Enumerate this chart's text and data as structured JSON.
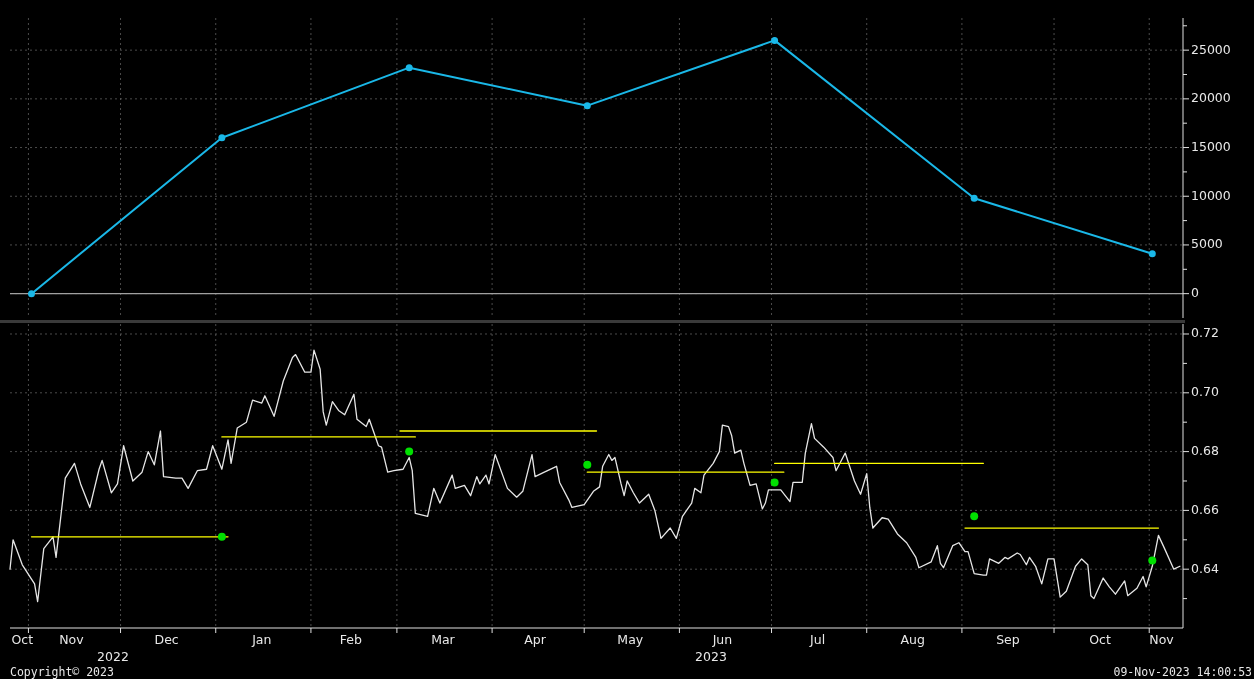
{
  "chart_data": [
    {
      "type": "line",
      "x": [
        "2022-11-02",
        "2023-01-03",
        "2023-03-05",
        "2023-05-02",
        "2023-07-02",
        "2023-09-05",
        "2023-11-02"
      ],
      "series": [
        {
          "color": "#1ab8e8",
          "values": [
            0,
            16000,
            23200,
            19300,
            26000,
            9800,
            4100
          ]
        }
      ],
      "marker": "circle",
      "grid": true,
      "tick_labels": "y",
      "xlim": [
        "2022-10-26",
        "2023-11-12"
      ],
      "xticks": [
        {
          "value": "2022-11-01",
          "label": null
        },
        {
          "value": "2022-12-01",
          "label": null
        },
        {
          "value": "2023-01-01",
          "label": null
        },
        {
          "value": "2023-02-01",
          "label": null
        },
        {
          "value": "2023-03-01",
          "label": null
        },
        {
          "value": "2023-04-01",
          "label": null
        },
        {
          "value": "2023-05-01",
          "label": null
        },
        {
          "value": "2023-06-01",
          "label": null
        },
        {
          "value": "2023-07-01",
          "label": null
        },
        {
          "value": "2023-08-01",
          "label": null
        },
        {
          "value": "2023-09-01",
          "label": null
        },
        {
          "value": "2023-10-01",
          "label": null
        },
        {
          "value": "2023-11-01",
          "label": null
        }
      ],
      "ylim": [
        -2500,
        28300
      ],
      "yticks": [
        0,
        5000,
        10000,
        15000,
        20000,
        25000,
        {
          "value": 2500,
          "label": null
        },
        {
          "value": 7500,
          "label": null
        },
        {
          "value": 12500,
          "label": null
        },
        {
          "value": 17500,
          "label": null
        },
        {
          "value": 22500,
          "label": null
        },
        {
          "value": 27500,
          "label": null
        }
      ],
      "ref_lines": [
        {
          "axis": "y",
          "value": 0,
          "color": "#a0a0a0"
        }
      ]
    },
    {
      "type": "line",
      "series": [
        {
          "color": "#e6e6e6",
          "x": [
            "2022-10-26",
            "2022-10-27",
            "2022-10-30",
            "2022-11-03",
            "2022-11-04",
            "2022-11-06",
            "2022-11-09",
            "2022-11-10",
            "2022-11-12",
            "2022-11-13",
            "2022-11-16",
            "2022-11-18",
            "2022-11-21",
            "2022-11-24",
            "2022-11-25",
            "2022-11-28",
            "2022-11-30",
            "2022-12-02",
            "2022-12-05",
            "2022-12-08",
            "2022-12-10",
            "2022-12-12",
            "2022-12-14",
            "2022-12-15",
            "2022-12-19",
            "2022-12-21",
            "2022-12-23",
            "2022-12-26",
            "2022-12-29",
            "2022-12-31",
            "2023-01-03",
            "2023-01-05",
            "2023-01-06",
            "2023-01-08",
            "2023-01-11",
            "2023-01-13",
            "2023-01-16",
            "2023-01-17",
            "2023-01-20",
            "2023-01-23",
            "2023-01-26",
            "2023-01-27",
            "2023-01-30",
            "2023-02-01",
            "2023-02-02",
            "2023-02-04",
            "2023-02-05",
            "2023-02-06",
            "2023-02-08",
            "2023-02-10",
            "2023-02-12",
            "2023-02-15",
            "2023-02-16",
            "2023-02-19",
            "2023-02-20",
            "2023-02-23",
            "2023-02-24",
            "2023-02-26",
            "2023-02-28",
            "2023-03-03",
            "2023-03-05",
            "2023-03-06",
            "2023-03-07",
            "2023-03-11",
            "2023-03-13",
            "2023-03-15",
            "2023-03-19",
            "2023-03-20",
            "2023-03-23",
            "2023-03-25",
            "2023-03-27",
            "2023-03-28",
            "2023-03-30",
            "2023-03-31",
            "2023-04-02",
            "2023-04-06",
            "2023-04-09",
            "2023-04-11",
            "2023-04-14",
            "2023-04-15",
            "2023-04-18",
            "2023-04-22",
            "2023-04-23",
            "2023-04-26",
            "2023-04-27",
            "2023-05-01",
            "2023-05-04",
            "2023-05-06",
            "2023-05-07",
            "2023-05-09",
            "2023-05-10",
            "2023-05-11",
            "2023-05-13",
            "2023-05-14",
            "2023-05-15",
            "2023-05-17",
            "2023-05-19",
            "2023-05-22",
            "2023-05-24",
            "2023-05-26",
            "2023-05-29",
            "2023-05-31",
            "2023-06-02",
            "2023-06-05",
            "2023-06-06",
            "2023-06-08",
            "2023-06-09",
            "2023-06-12",
            "2023-06-14",
            "2023-06-15",
            "2023-06-17",
            "2023-06-18",
            "2023-06-19",
            "2023-06-21",
            "2023-06-22",
            "2023-06-24",
            "2023-06-26",
            "2023-06-28",
            "2023-06-29",
            "2023-06-30",
            "2023-07-04",
            "2023-07-07",
            "2023-07-08",
            "2023-07-11",
            "2023-07-12",
            "2023-07-14",
            "2023-07-15",
            "2023-07-18",
            "2023-07-21",
            "2023-07-22",
            "2023-07-25",
            "2023-07-28",
            "2023-07-30",
            "2023-08-01",
            "2023-08-02",
            "2023-08-03",
            "2023-08-06",
            "2023-08-08",
            "2023-08-11",
            "2023-08-14",
            "2023-08-17",
            "2023-08-18",
            "2023-08-22",
            "2023-08-24",
            "2023-08-25",
            "2023-08-26",
            "2023-08-29",
            "2023-08-31",
            "2023-09-02",
            "2023-09-03",
            "2023-09-05",
            "2023-09-08",
            "2023-09-09",
            "2023-09-10",
            "2023-09-13",
            "2023-09-15",
            "2023-09-16",
            "2023-09-19",
            "2023-09-20",
            "2023-09-22",
            "2023-09-23",
            "2023-09-25",
            "2023-09-27",
            "2023-09-29",
            "2023-10-01",
            "2023-10-03",
            "2023-10-05",
            "2023-10-08",
            "2023-10-10",
            "2023-10-12",
            "2023-10-13",
            "2023-10-14",
            "2023-10-17",
            "2023-10-19",
            "2023-10-21",
            "2023-10-24",
            "2023-10-25",
            "2023-10-28",
            "2023-10-30",
            "2023-10-31",
            "2023-11-02",
            "2023-11-04",
            "2023-11-06",
            "2023-11-09",
            "2023-11-11"
          ],
          "values": [
            0.64,
            0.65,
            0.6415,
            0.635,
            0.629,
            0.647,
            0.651,
            0.644,
            0.662,
            0.671,
            0.676,
            0.669,
            0.661,
            0.674,
            0.677,
            0.666,
            0.669,
            0.682,
            0.67,
            0.673,
            0.68,
            0.6755,
            0.687,
            0.6715,
            0.671,
            0.671,
            0.6675,
            0.6735,
            0.674,
            0.682,
            0.674,
            0.684,
            0.676,
            0.688,
            0.69,
            0.6975,
            0.6965,
            0.699,
            0.692,
            0.704,
            0.712,
            0.713,
            0.707,
            0.707,
            0.7145,
            0.708,
            0.6935,
            0.689,
            0.697,
            0.694,
            0.6925,
            0.6995,
            0.691,
            0.6885,
            0.691,
            0.682,
            0.6815,
            0.673,
            0.6735,
            0.674,
            0.678,
            0.6735,
            0.659,
            0.658,
            0.6675,
            0.6625,
            0.672,
            0.6675,
            0.6685,
            0.665,
            0.6715,
            0.669,
            0.672,
            0.669,
            0.679,
            0.6675,
            0.6645,
            0.6665,
            0.679,
            0.6715,
            0.673,
            0.675,
            0.6695,
            0.6635,
            0.661,
            0.662,
            0.6665,
            0.668,
            0.675,
            0.679,
            0.677,
            0.678,
            0.669,
            0.665,
            0.67,
            0.666,
            0.6625,
            0.6655,
            0.66,
            0.6505,
            0.654,
            0.6505,
            0.658,
            0.6625,
            0.6675,
            0.666,
            0.672,
            0.676,
            0.68,
            0.689,
            0.6885,
            0.6855,
            0.6795,
            0.6805,
            0.676,
            0.6685,
            0.669,
            0.6605,
            0.6625,
            0.667,
            0.667,
            0.663,
            0.6695,
            0.6695,
            0.6795,
            0.6895,
            0.6845,
            0.6815,
            0.678,
            0.6735,
            0.6795,
            0.67,
            0.6655,
            0.6725,
            0.661,
            0.654,
            0.6575,
            0.657,
            0.652,
            0.649,
            0.644,
            0.6405,
            0.6425,
            0.648,
            0.642,
            0.6405,
            0.648,
            0.649,
            0.646,
            0.646,
            0.6385,
            0.638,
            0.638,
            0.6435,
            0.642,
            0.644,
            0.6435,
            0.6455,
            0.645,
            0.6415,
            0.644,
            0.641,
            0.635,
            0.6435,
            0.6435,
            0.6305,
            0.6325,
            0.641,
            0.6435,
            0.6415,
            0.631,
            0.63,
            0.637,
            0.634,
            0.6315,
            0.636,
            0.631,
            0.6335,
            0.6375,
            0.634,
            0.641,
            0.6515,
            0.647,
            0.64,
            0.641
          ]
        },
        {
          "color": "#ffff00",
          "x": [
            "2022-11-02",
            "2023-01-05"
          ],
          "values": [
            0.651,
            0.651
          ]
        },
        {
          "color": "#ffff00",
          "x": [
            "2023-01-03",
            "2023-03-07"
          ],
          "values": [
            0.685,
            0.685
          ]
        },
        {
          "color": "#ffff00",
          "x": [
            "2023-03-02",
            "2023-05-05"
          ],
          "values": [
            0.687,
            0.687
          ]
        },
        {
          "color": "#ffff00",
          "x": [
            "2023-05-02",
            "2023-07-05"
          ],
          "values": [
            0.673,
            0.673
          ]
        },
        {
          "color": "#ffff00",
          "x": [
            "2023-07-02",
            "2023-09-08"
          ],
          "values": [
            0.676,
            0.676
          ]
        },
        {
          "color": "#ffff00",
          "x": [
            "2023-09-02",
            "2023-11-04"
          ],
          "values": [
            0.654,
            0.654
          ]
        },
        {
          "type": "scatter",
          "color": "#00e000",
          "x": [
            "2023-01-03",
            "2023-03-05",
            "2023-05-02",
            "2023-07-02",
            "2023-09-05",
            "2023-11-02"
          ],
          "values": [
            0.651,
            0.68,
            0.6755,
            0.6695,
            0.658,
            0.643
          ]
        }
      ],
      "grid": true,
      "xlim": [
        "2022-10-26",
        "2023-11-12"
      ],
      "xticks": [
        {
          "value": "2022-10-30",
          "label": "Oct"
        },
        {
          "value": "2022-11-01",
          "label": null
        },
        {
          "value": "2022-11-15",
          "label": "Nov"
        },
        {
          "value": "2022-12-01",
          "label": null
        },
        {
          "value": "2022-12-16",
          "label": "Dec"
        },
        {
          "value": "2023-01-01",
          "label": null
        },
        {
          "value": "2023-01-16",
          "label": "Jan"
        },
        {
          "value": "2023-02-01",
          "label": null
        },
        {
          "value": "2023-02-14",
          "label": "Feb"
        },
        {
          "value": "2023-03-01",
          "label": null
        },
        {
          "value": "2023-03-16",
          "label": "Mar"
        },
        {
          "value": "2023-04-01",
          "label": null
        },
        {
          "value": "2023-04-15",
          "label": "Apr"
        },
        {
          "value": "2023-05-01",
          "label": null
        },
        {
          "value": "2023-05-16",
          "label": "May"
        },
        {
          "value": "2023-06-01",
          "label": null
        },
        {
          "value": "2023-06-15",
          "label": "Jun"
        },
        {
          "value": "2023-07-01",
          "label": null
        },
        {
          "value": "2023-07-16",
          "label": "Jul"
        },
        {
          "value": "2023-08-01",
          "label": null
        },
        {
          "value": "2023-08-16",
          "label": "Aug"
        },
        {
          "value": "2023-09-01",
          "label": null
        },
        {
          "value": "2023-09-16",
          "label": "Sep"
        },
        {
          "value": "2023-10-01",
          "label": null
        },
        {
          "value": "2023-10-16",
          "label": "Oct"
        },
        {
          "value": "2023-11-01",
          "label": null
        },
        {
          "value": "2023-11-05",
          "label": "Nov"
        }
      ],
      "ylim": [
        0.62,
        0.7234
      ],
      "yticks": [
        0.64,
        0.66,
        0.68,
        {
          "value": 0.7,
          "label": "0.70"
        },
        0.72,
        {
          "value": 0.63,
          "label": null
        },
        {
          "value": 0.65,
          "label": null
        },
        {
          "value": 0.67,
          "label": null
        },
        {
          "value": 0.69,
          "label": null
        },
        {
          "value": 0.71,
          "label": null
        }
      ],
      "annotations": [
        "Copyright© 2023",
        "09-Nov-2023 14:00:53",
        "2022",
        "2023"
      ]
    }
  ]
}
